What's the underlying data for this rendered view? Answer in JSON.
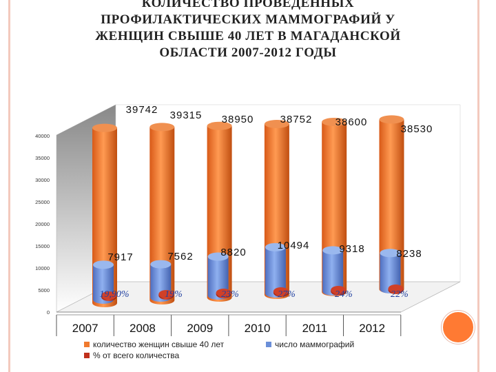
{
  "title_lines": [
    "КОЛИЧЕСТВО ПРОВЕДЕННЫХ",
    "ПРОФИЛАКТИЧЕСКИХ МАММОГРАФИЙ У",
    "ЖЕНЩИН СВЫШЕ 40 ЛЕТ В  МАГАДАНСКОЙ",
    "ОБЛАСТИ  2007-2012 ГОДЫ"
  ],
  "colors": {
    "women": "#f07a2e",
    "mammography": "#6b8fd8",
    "percent": "#c0301c",
    "accent": "#ff7a33"
  },
  "chart_data": {
    "type": "bar",
    "categories": [
      "2007",
      "2008",
      "2009",
      "2010",
      "2011",
      "2012"
    ],
    "series": [
      {
        "name": "количество женщин свыше 40 лет",
        "values": [
          39742,
          39315,
          38950,
          38752,
          38600,
          38530
        ],
        "labels": [
          "39742",
          "39315",
          "38950",
          "38752",
          "38600",
          "38530"
        ]
      },
      {
        "name": "число маммографий",
        "values": [
          7917,
          7562,
          8820,
          10494,
          9318,
          8238
        ],
        "labels": [
          "7917",
          "7562",
          "8820",
          "10494",
          "9318",
          "8238"
        ]
      },
      {
        "name": "% от всего количества",
        "values": [
          19.9,
          19,
          23,
          27,
          24,
          22
        ],
        "labels": [
          "19,90%",
          "19%",
          "23%",
          "27%",
          "24%",
          "22%"
        ]
      }
    ],
    "ylim": [
      0,
      40000
    ],
    "yticks": [
      "0",
      "5000",
      "10000",
      "15000",
      "20000",
      "25000",
      "30000",
      "35000",
      "40000"
    ],
    "legend_position": "bottom",
    "grid": false,
    "style": "3d-cylinders"
  }
}
